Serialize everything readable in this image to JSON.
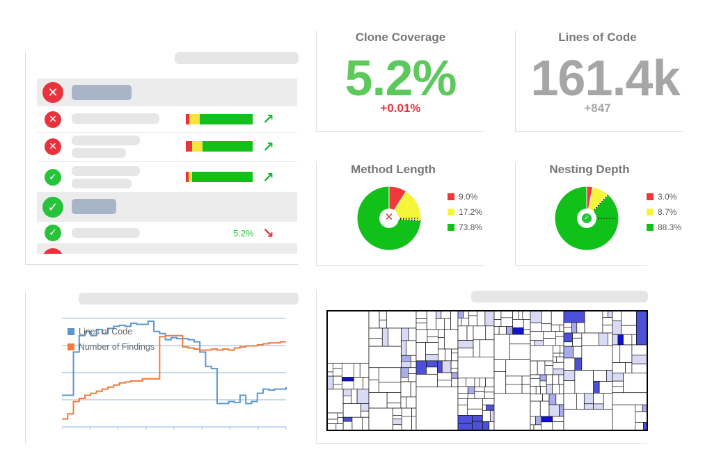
{
  "colors": {
    "fail": "#e8333c",
    "ok": "#27c43a",
    "green": "#00c000",
    "yellow": "#f5f53a",
    "red": "#f0373a",
    "blue": "#5b96cf",
    "orange": "#f07b3f",
    "trend_up": "#16b832",
    "trend_down": "#e8333c"
  },
  "checks": {
    "rows": [
      {
        "status": "fail",
        "icon": "close-icon"
      },
      {
        "status": "fail",
        "icon": "close-icon"
      },
      {
        "status": "ok",
        "icon": "check-icon"
      },
      {
        "status": "ok",
        "icon": "check-icon",
        "value": "5.2%"
      }
    ]
  },
  "clone_coverage": {
    "title": "Clone Coverage",
    "value": "5.2%",
    "delta": "+0.01%"
  },
  "lines_of_code": {
    "title": "Lines of Code",
    "value": "161.4k",
    "delta": "+847"
  },
  "method_length": {
    "title": "Method Length",
    "status_icon": "close-icon",
    "slices": [
      {
        "label": "9.0%",
        "value": 9.0,
        "color": "#f0373a"
      },
      {
        "label": "17.2%",
        "value": 17.2,
        "color": "#f5f53a"
      },
      {
        "label": "73.8%",
        "value": 73.8,
        "color": "#11c11a"
      }
    ]
  },
  "nesting_depth": {
    "title": "Nesting Depth",
    "status_icon": "check-icon",
    "slices": [
      {
        "label": "3.0%",
        "value": 3.0,
        "color": "#f0373a"
      },
      {
        "label": "8.7%",
        "value": 8.7,
        "color": "#f5f53a"
      },
      {
        "label": "88.3%",
        "value": 88.3,
        "color": "#11c11a"
      }
    ]
  },
  "chart_data": {
    "type": "line",
    "series": [
      {
        "name": "Lines of Code",
        "color": "#5b96cf",
        "values": [
          28,
          28,
          70,
          86,
          90,
          86,
          92,
          88,
          93,
          95,
          96,
          95,
          98,
          97,
          97,
          100,
          90,
          88,
          82,
          84,
          83,
          83,
          82,
          80,
          70,
          56,
          54,
          20,
          20,
          22,
          21,
          28,
          20,
          22,
          30,
          34,
          33,
          34,
          34,
          36
        ]
      },
      {
        "name": "Number of Findings",
        "color": "#f07b3f",
        "values": [
          5,
          10,
          22,
          25,
          28,
          30,
          32,
          34,
          36,
          38,
          40,
          41,
          42,
          42,
          44,
          44,
          44,
          85,
          86,
          86,
          86,
          75,
          74,
          73,
          72,
          72,
          73,
          72,
          73,
          72,
          74,
          75,
          76,
          76,
          77,
          78,
          79,
          79,
          80,
          80
        ]
      }
    ]
  },
  "treemap": {
    "scheme": [
      "#ffffff",
      "#d8daf6",
      "#a9acec",
      "#4c51d8",
      "#1111d0"
    ]
  }
}
